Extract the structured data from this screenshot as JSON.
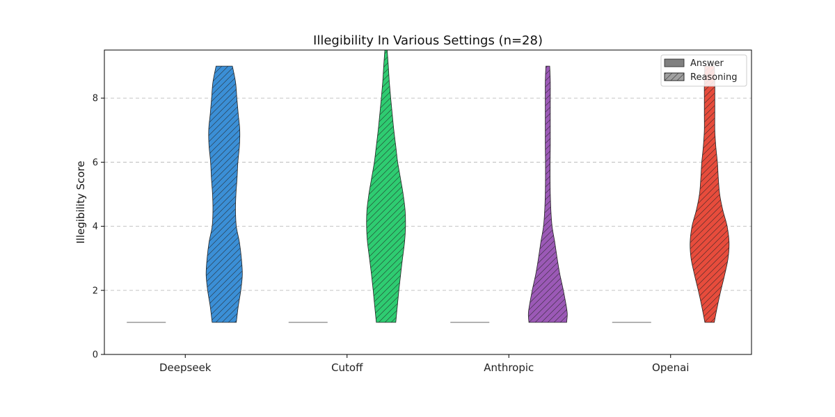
{
  "chart_data": {
    "type": "violin",
    "title": "Illegibility In Various Settings (n=28)",
    "xlabel": "",
    "ylabel": "Illegibility Score",
    "ylim": [
      0,
      9.5
    ],
    "yticks": [
      0,
      2,
      4,
      6,
      8
    ],
    "grid": "y-dashed",
    "legend_position": "top-right",
    "legend": [
      {
        "label": "Answer",
        "hatch": false,
        "color": "#808080"
      },
      {
        "label": "Reasoning",
        "hatch": true,
        "color": "#a0a0a0"
      }
    ],
    "categories": [
      "Deepseek",
      "Cutoff",
      "Anthropic",
      "Openai"
    ],
    "colors": [
      "#3b8fd6",
      "#2ecc71",
      "#9b59b6",
      "#e74c3c"
    ],
    "series": [
      {
        "name": "Answer",
        "values": [
          [
            1
          ],
          [
            1
          ],
          [
            1
          ],
          [
            1
          ]
        ]
      },
      {
        "name": "Reasoning",
        "range": [
          [
            1,
            9
          ],
          [
            1,
            9.5
          ],
          [
            1,
            9
          ],
          [
            1,
            9
          ]
        ],
        "density": [
          [
            [
              1,
              0.62
            ],
            [
              1.5,
              0.72
            ],
            [
              2,
              0.85
            ],
            [
              2.5,
              0.93
            ],
            [
              3,
              0.88
            ],
            [
              3.5,
              0.78
            ],
            [
              4,
              0.62
            ],
            [
              4.5,
              0.58
            ],
            [
              5,
              0.6
            ],
            [
              5.5,
              0.66
            ],
            [
              6,
              0.7
            ],
            [
              6.5,
              0.78
            ],
            [
              7,
              0.8
            ],
            [
              7.5,
              0.72
            ],
            [
              8,
              0.65
            ],
            [
              8.5,
              0.58
            ],
            [
              9,
              0.42
            ]
          ],
          [
            [
              1,
              0.5
            ],
            [
              1.5,
              0.58
            ],
            [
              2,
              0.66
            ],
            [
              2.5,
              0.75
            ],
            [
              3,
              0.85
            ],
            [
              3.5,
              0.95
            ],
            [
              4,
              1.0
            ],
            [
              4.5,
              0.98
            ],
            [
              5,
              0.88
            ],
            [
              5.5,
              0.74
            ],
            [
              6,
              0.6
            ],
            [
              6.5,
              0.5
            ],
            [
              7,
              0.4
            ],
            [
              7.5,
              0.32
            ],
            [
              8,
              0.24
            ],
            [
              8.5,
              0.17
            ],
            [
              9,
              0.12
            ],
            [
              9.5,
              0.06
            ]
          ],
          [
            [
              1,
              0.97
            ],
            [
              1.25,
              1.0
            ],
            [
              1.5,
              0.95
            ],
            [
              2,
              0.8
            ],
            [
              2.5,
              0.62
            ],
            [
              3,
              0.48
            ],
            [
              3.5,
              0.36
            ],
            [
              4,
              0.22
            ],
            [
              4.5,
              0.16
            ],
            [
              5,
              0.13
            ],
            [
              5.5,
              0.12
            ],
            [
              6,
              0.12
            ],
            [
              6.5,
              0.13
            ],
            [
              7,
              0.13
            ],
            [
              7.5,
              0.13
            ],
            [
              8,
              0.13
            ],
            [
              8.5,
              0.13
            ],
            [
              9,
              0.1
            ]
          ],
          [
            [
              1,
              0.24
            ],
            [
              1.5,
              0.4
            ],
            [
              2,
              0.58
            ],
            [
              2.5,
              0.78
            ],
            [
              3,
              0.95
            ],
            [
              3.5,
              1.0
            ],
            [
              4,
              0.9
            ],
            [
              4.5,
              0.68
            ],
            [
              5,
              0.52
            ],
            [
              5.5,
              0.45
            ],
            [
              6,
              0.4
            ],
            [
              6.5,
              0.32
            ],
            [
              7,
              0.27
            ],
            [
              7.5,
              0.27
            ],
            [
              8,
              0.27
            ],
            [
              8.5,
              0.27
            ],
            [
              9,
              0.25
            ]
          ]
        ]
      }
    ]
  }
}
